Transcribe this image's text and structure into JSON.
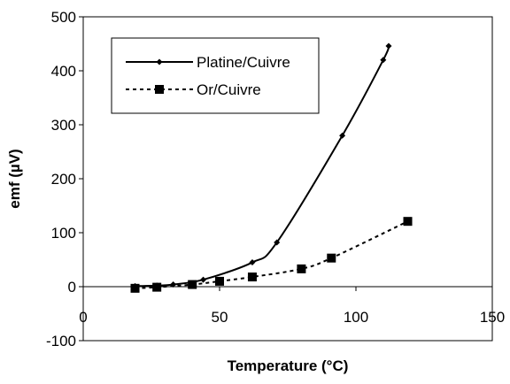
{
  "chart_data": {
    "type": "line",
    "title": "",
    "xlabel": "Temperature (°C)",
    "ylabel": "emf (µV)",
    "xlim": [
      0,
      150
    ],
    "ylim": [
      -100,
      500
    ],
    "x_ticks": [
      "0",
      "50",
      "100",
      "150"
    ],
    "y_ticks": [
      "-100",
      "0",
      "100",
      "200",
      "300",
      "400",
      "500"
    ],
    "grid": false,
    "legend_position": "top-left",
    "series": [
      {
        "name": "Platine/Cuivre",
        "style": "solid",
        "marker": "diamond",
        "color": "#000000",
        "points": [
          [
            19,
            1
          ],
          [
            27,
            2
          ],
          [
            33,
            4
          ],
          [
            44,
            13
          ],
          [
            62,
            45
          ],
          [
            71,
            82
          ],
          [
            95,
            280
          ],
          [
            110,
            420
          ],
          [
            112,
            446
          ]
        ]
      },
      {
        "name": "Or/Cuivre",
        "style": "dashed",
        "marker": "square",
        "color": "#000000",
        "points": [
          [
            19,
            -3
          ],
          [
            27,
            -1
          ],
          [
            40,
            4
          ],
          [
            50,
            10
          ],
          [
            62,
            18
          ],
          [
            80,
            33
          ],
          [
            91,
            53
          ],
          [
            119,
            121
          ]
        ]
      }
    ]
  }
}
